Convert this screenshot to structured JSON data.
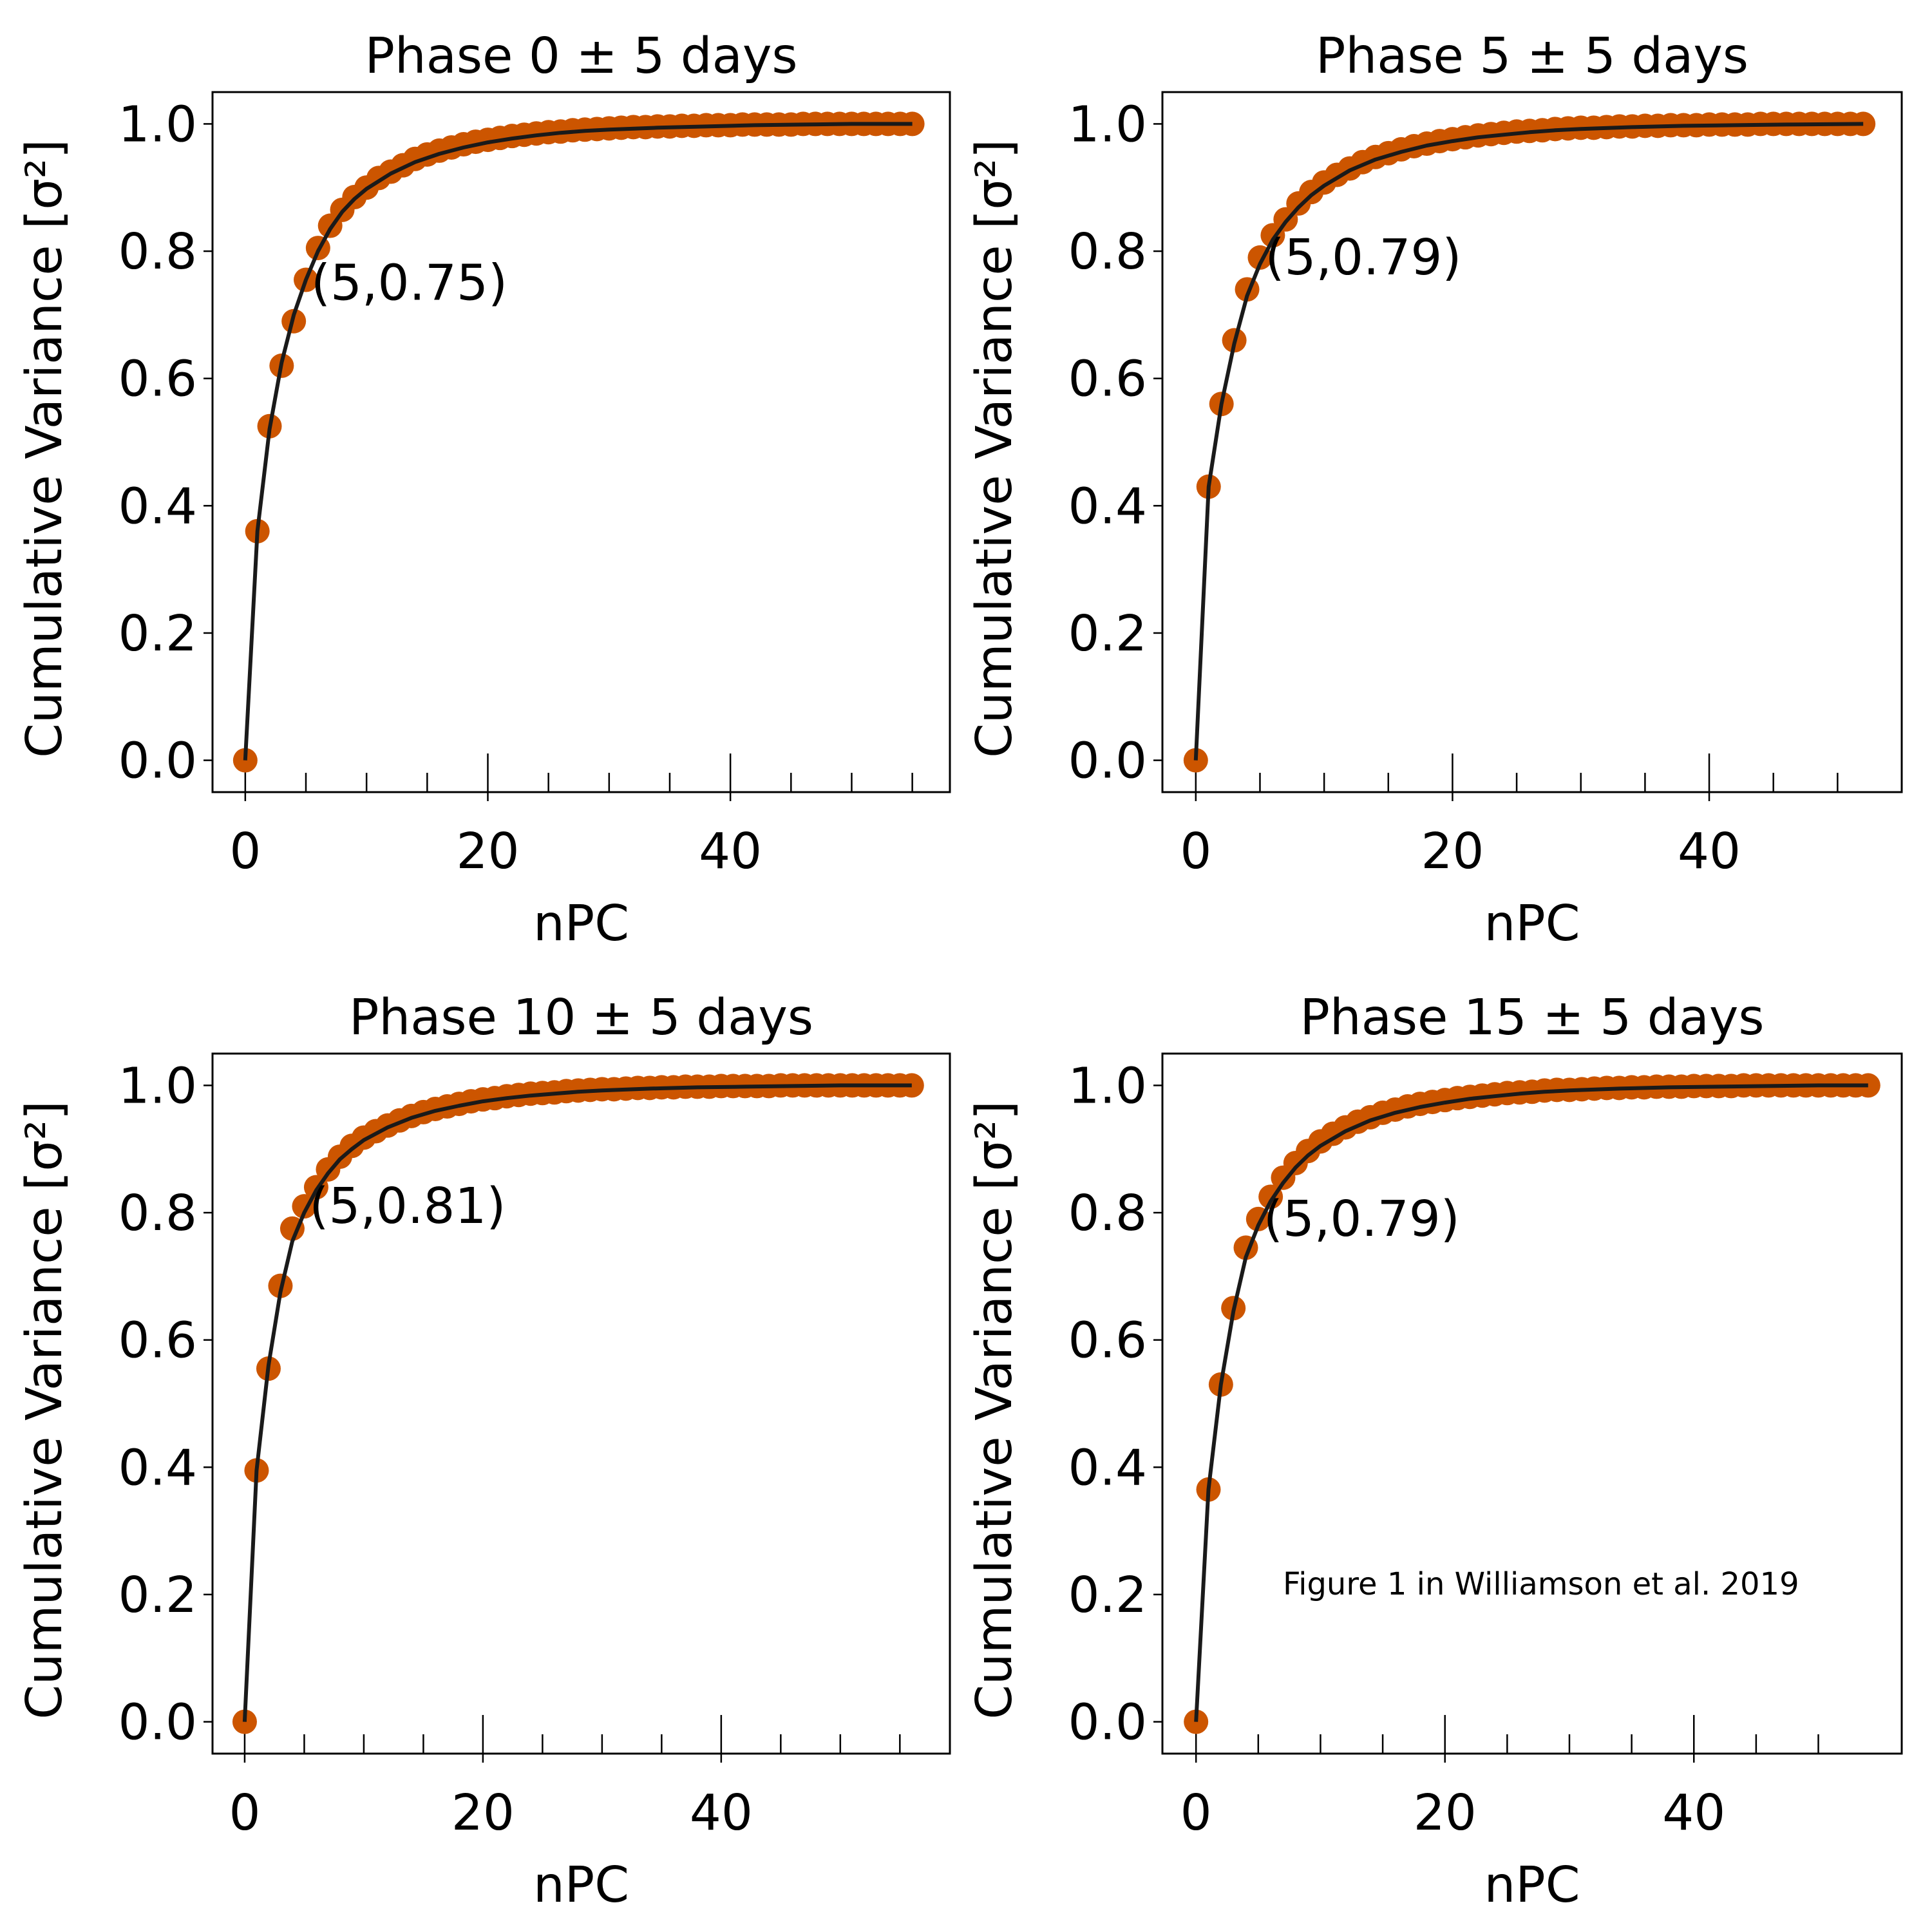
{
  "figure": {
    "credit": "Figure 1 in Williamson et al. 2019",
    "credit_color": "#0000CC"
  },
  "style": {
    "marker_color": "#CC5500",
    "line_color": "#1A1A1A",
    "annotation_color": "#CC5500"
  },
  "chart_data": [
    {
      "type": "scatter",
      "title": "Phase 0 ± 5 days",
      "xlabel": "nPC",
      "ylabel": "Cumulative Variance [σ²]",
      "xlim": [
        -2.7,
        58.1
      ],
      "ylim": [
        -0.05,
        1.05
      ],
      "xticks_major": [
        0,
        20,
        40
      ],
      "xticks_minor": [
        5,
        10,
        15,
        25,
        30,
        35,
        45,
        50,
        55
      ],
      "yticks": [
        0.0,
        0.2,
        0.4,
        0.6,
        0.8,
        1.0
      ],
      "n_max": 55,
      "annotation": {
        "text": "(5,0.75)",
        "x": 5,
        "y": 0.75
      },
      "series": [
        {
          "kind": "markers",
          "x": [
            0,
            1,
            2,
            3,
            4,
            5,
            6,
            7,
            8,
            9,
            10,
            11,
            12,
            13,
            14,
            15,
            16,
            17,
            18,
            19,
            20,
            21,
            22,
            23,
            24,
            25,
            26,
            27,
            28,
            29,
            30,
            31,
            32,
            33,
            34,
            35,
            36,
            37,
            38,
            39,
            40,
            41,
            42,
            43,
            44,
            45,
            46,
            47,
            48,
            49,
            50,
            51,
            52,
            53,
            54,
            55
          ],
          "y": [
            0.0,
            0.36,
            0.525,
            0.62,
            0.69,
            0.755,
            0.805,
            0.84,
            0.865,
            0.885,
            0.9,
            0.915,
            0.925,
            0.935,
            0.945,
            0.952,
            0.958,
            0.963,
            0.968,
            0.972,
            0.975,
            0.978,
            0.981,
            0.983,
            0.985,
            0.987,
            0.988,
            0.99,
            0.991,
            0.992,
            0.993,
            0.994,
            0.995,
            0.995,
            0.996,
            0.996,
            0.997,
            0.997,
            0.998,
            0.998,
            0.998,
            0.999,
            0.999,
            0.999,
            0.999,
            0.999,
            1.0,
            1.0,
            1.0,
            1.0,
            1.0,
            1.0,
            1.0,
            1.0,
            1.0,
            1.0
          ]
        },
        {
          "kind": "line",
          "x": [
            0,
            1,
            2,
            3,
            4,
            5,
            6,
            7,
            8,
            9,
            10,
            12,
            14,
            16,
            18,
            20,
            22,
            24,
            26,
            28,
            30,
            34,
            38,
            42,
            46,
            50,
            55
          ],
          "y": [
            0.0,
            0.36,
            0.52,
            0.625,
            0.7,
            0.755,
            0.8,
            0.835,
            0.862,
            0.882,
            0.898,
            0.922,
            0.94,
            0.953,
            0.963,
            0.971,
            0.977,
            0.982,
            0.986,
            0.989,
            0.991,
            0.994,
            0.996,
            0.998,
            0.999,
            1.0,
            1.0
          ]
        }
      ]
    },
    {
      "type": "scatter",
      "title": "Phase 5 ± 5 days",
      "xlabel": "nPC",
      "ylabel": "Cumulative Variance [σ²]",
      "xlim": [
        -2.6,
        55.0
      ],
      "ylim": [
        -0.05,
        1.05
      ],
      "xticks_major": [
        0,
        20,
        40
      ],
      "xticks_minor": [
        5,
        10,
        15,
        25,
        30,
        35,
        45,
        50
      ],
      "yticks": [
        0.0,
        0.2,
        0.4,
        0.6,
        0.8,
        1.0
      ],
      "n_max": 52,
      "annotation": {
        "text": "(5,0.79)",
        "x": 5,
        "y": 0.79
      },
      "series": [
        {
          "kind": "markers",
          "x": [
            0,
            1,
            2,
            3,
            4,
            5,
            6,
            7,
            8,
            9,
            10,
            11,
            12,
            13,
            14,
            15,
            16,
            17,
            18,
            19,
            20,
            21,
            22,
            23,
            24,
            25,
            26,
            27,
            28,
            29,
            30,
            31,
            32,
            33,
            34,
            35,
            36,
            37,
            38,
            39,
            40,
            41,
            42,
            43,
            44,
            45,
            46,
            47,
            48,
            49,
            50,
            51,
            52
          ],
          "y": [
            0.0,
            0.43,
            0.56,
            0.66,
            0.74,
            0.79,
            0.825,
            0.85,
            0.875,
            0.893,
            0.908,
            0.92,
            0.93,
            0.94,
            0.948,
            0.954,
            0.96,
            0.965,
            0.969,
            0.973,
            0.976,
            0.979,
            0.982,
            0.984,
            0.986,
            0.988,
            0.989,
            0.99,
            0.992,
            0.993,
            0.994,
            0.994,
            0.995,
            0.996,
            0.996,
            0.997,
            0.997,
            0.998,
            0.998,
            0.998,
            0.999,
            0.999,
            0.999,
            0.999,
            1.0,
            1.0,
            1.0,
            1.0,
            1.0,
            1.0,
            1.0,
            1.0,
            1.0
          ]
        },
        {
          "kind": "line",
          "x": [
            0,
            1,
            2,
            3,
            4,
            5,
            6,
            7,
            8,
            9,
            10,
            12,
            14,
            16,
            18,
            20,
            22,
            24,
            26,
            28,
            30,
            34,
            38,
            42,
            46,
            52
          ],
          "y": [
            0.0,
            0.43,
            0.56,
            0.655,
            0.73,
            0.78,
            0.818,
            0.846,
            0.869,
            0.888,
            0.903,
            0.927,
            0.944,
            0.956,
            0.966,
            0.973,
            0.979,
            0.983,
            0.987,
            0.99,
            0.992,
            0.995,
            0.997,
            0.998,
            0.999,
            1.0
          ]
        }
      ]
    },
    {
      "type": "scatter",
      "title": "Phase 10 ± 5 days",
      "xlabel": "nPC",
      "ylabel": "Cumulative Variance [σ²]",
      "xlim": [
        -2.7,
        59.2
      ],
      "ylim": [
        -0.05,
        1.05
      ],
      "xticks_major": [
        0,
        20,
        40
      ],
      "xticks_minor": [
        5,
        10,
        15,
        25,
        30,
        35,
        45,
        50,
        55
      ],
      "yticks": [
        0.0,
        0.2,
        0.4,
        0.6,
        0.8,
        1.0
      ],
      "n_max": 56,
      "annotation": {
        "text": "(5,0.81)",
        "x": 5,
        "y": 0.81
      },
      "series": [
        {
          "kind": "markers",
          "x": [
            0,
            1,
            2,
            3,
            4,
            5,
            6,
            7,
            8,
            9,
            10,
            11,
            12,
            13,
            14,
            15,
            16,
            17,
            18,
            19,
            20,
            21,
            22,
            23,
            24,
            25,
            26,
            27,
            28,
            29,
            30,
            31,
            32,
            33,
            34,
            35,
            36,
            37,
            38,
            39,
            40,
            41,
            42,
            43,
            44,
            45,
            46,
            47,
            48,
            49,
            50,
            51,
            52,
            53,
            54,
            55,
            56
          ],
          "y": [
            0.0,
            0.395,
            0.555,
            0.685,
            0.775,
            0.81,
            0.84,
            0.868,
            0.888,
            0.905,
            0.918,
            0.928,
            0.937,
            0.945,
            0.952,
            0.958,
            0.963,
            0.967,
            0.971,
            0.975,
            0.978,
            0.98,
            0.983,
            0.985,
            0.987,
            0.988,
            0.989,
            0.991,
            0.992,
            0.993,
            0.994,
            0.994,
            0.995,
            0.996,
            0.996,
            0.997,
            0.997,
            0.998,
            0.998,
            0.998,
            0.999,
            0.999,
            0.999,
            0.999,
            0.999,
            1.0,
            1.0,
            1.0,
            1.0,
            1.0,
            1.0,
            1.0,
            1.0,
            1.0,
            1.0,
            1.0,
            1.0
          ]
        },
        {
          "kind": "line",
          "x": [
            0,
            1,
            2,
            3,
            4,
            5,
            6,
            7,
            8,
            9,
            10,
            12,
            14,
            16,
            18,
            20,
            22,
            24,
            26,
            28,
            30,
            34,
            38,
            42,
            46,
            50,
            56
          ],
          "y": [
            0.0,
            0.395,
            0.56,
            0.675,
            0.755,
            0.8,
            0.835,
            0.862,
            0.884,
            0.9,
            0.914,
            0.934,
            0.949,
            0.96,
            0.968,
            0.975,
            0.98,
            0.984,
            0.987,
            0.99,
            0.992,
            0.995,
            0.997,
            0.998,
            0.999,
            1.0,
            1.0
          ]
        }
      ]
    },
    {
      "type": "scatter",
      "title": "Phase 15 ± 5 days",
      "xlabel": "nPC",
      "ylabel": "Cumulative Variance [σ²]",
      "xlim": [
        -2.7,
        56.7
      ],
      "ylim": [
        -0.05,
        1.05
      ],
      "xticks_major": [
        0,
        20,
        40
      ],
      "xticks_minor": [
        5,
        10,
        15,
        25,
        30,
        35,
        45,
        50
      ],
      "yticks": [
        0.0,
        0.2,
        0.4,
        0.6,
        0.8,
        1.0
      ],
      "n_max": 54,
      "annotation": {
        "text": "(5,0.79)",
        "x": 5,
        "y": 0.79
      },
      "series": [
        {
          "kind": "markers",
          "x": [
            0,
            1,
            2,
            3,
            4,
            5,
            6,
            7,
            8,
            9,
            10,
            11,
            12,
            13,
            14,
            15,
            16,
            17,
            18,
            19,
            20,
            21,
            22,
            23,
            24,
            25,
            26,
            27,
            28,
            29,
            30,
            31,
            32,
            33,
            34,
            35,
            36,
            37,
            38,
            39,
            40,
            41,
            42,
            43,
            44,
            45,
            46,
            47,
            48,
            49,
            50,
            51,
            52,
            53,
            54
          ],
          "y": [
            0.0,
            0.365,
            0.53,
            0.65,
            0.745,
            0.79,
            0.825,
            0.855,
            0.878,
            0.897,
            0.912,
            0.924,
            0.934,
            0.943,
            0.95,
            0.957,
            0.962,
            0.967,
            0.971,
            0.974,
            0.977,
            0.98,
            0.982,
            0.984,
            0.986,
            0.988,
            0.989,
            0.99,
            0.992,
            0.993,
            0.993,
            0.994,
            0.995,
            0.996,
            0.996,
            0.997,
            0.997,
            0.998,
            0.998,
            0.998,
            0.999,
            0.999,
            0.999,
            0.999,
            1.0,
            1.0,
            1.0,
            1.0,
            1.0,
            1.0,
            1.0,
            1.0,
            1.0,
            1.0,
            1.0
          ]
        },
        {
          "kind": "line",
          "x": [
            0,
            1,
            2,
            3,
            4,
            5,
            6,
            7,
            8,
            9,
            10,
            12,
            14,
            16,
            18,
            20,
            22,
            24,
            26,
            28,
            30,
            34,
            38,
            42,
            46,
            50,
            54
          ],
          "y": [
            0.0,
            0.365,
            0.53,
            0.645,
            0.73,
            0.78,
            0.818,
            0.847,
            0.871,
            0.89,
            0.905,
            0.928,
            0.945,
            0.957,
            0.966,
            0.973,
            0.979,
            0.983,
            0.987,
            0.99,
            0.992,
            0.995,
            0.997,
            0.998,
            0.999,
            1.0,
            1.0
          ]
        }
      ]
    }
  ]
}
